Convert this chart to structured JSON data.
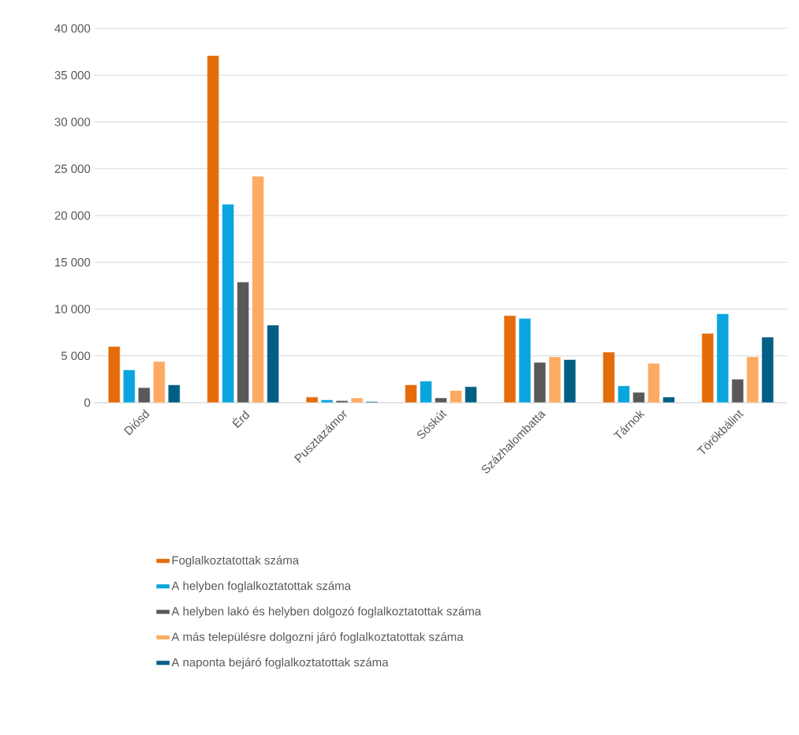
{
  "chart_data": {
    "type": "bar",
    "categories": [
      "Diósd",
      "Érd",
      "Pusztazámor",
      "Sóskút",
      "Százhalombatta",
      "Tárnok",
      "Törökbálint"
    ],
    "series": [
      {
        "name": "Foglalkoztatottak száma",
        "color": "#e46c0a",
        "values": [
          6000,
          37100,
          600,
          1900,
          9300,
          5400,
          7400
        ]
      },
      {
        "name": "A helyben foglalkoztatottak száma",
        "color": "#0aa5de",
        "values": [
          3500,
          21200,
          300,
          2300,
          9000,
          1800,
          9500
        ]
      },
      {
        "name": "A helyben lakó és helyben dolgozó foglalkoztatottak száma",
        "color": "#595959",
        "values": [
          1600,
          12900,
          200,
          500,
          4300,
          1100,
          2500
        ]
      },
      {
        "name": "A más településre dolgozni járó foglalkoztatottak száma",
        "color": "#fdab62",
        "values": [
          4400,
          24200,
          500,
          1300,
          4900,
          4200,
          4900
        ]
      },
      {
        "name": "A naponta bejáró foglalkoztatottak száma",
        "color": "#005f85",
        "values": [
          1900,
          8300,
          100,
          1700,
          4600,
          600,
          7000
        ]
      }
    ],
    "ylim": [
      0,
      40000
    ],
    "yticks": [
      {
        "value": 0,
        "label": "0"
      },
      {
        "value": 5000,
        "label": "5 000"
      },
      {
        "value": 10000,
        "label": "10 000"
      },
      {
        "value": 15000,
        "label": "15 000"
      },
      {
        "value": 20000,
        "label": "20 000"
      },
      {
        "value": 25000,
        "label": "25 000"
      },
      {
        "value": 30000,
        "label": "30 000"
      },
      {
        "value": 35000,
        "label": "35 000"
      },
      {
        "value": 40000,
        "label": "40 000"
      }
    ],
    "grid": "y",
    "legend": "bottom"
  }
}
